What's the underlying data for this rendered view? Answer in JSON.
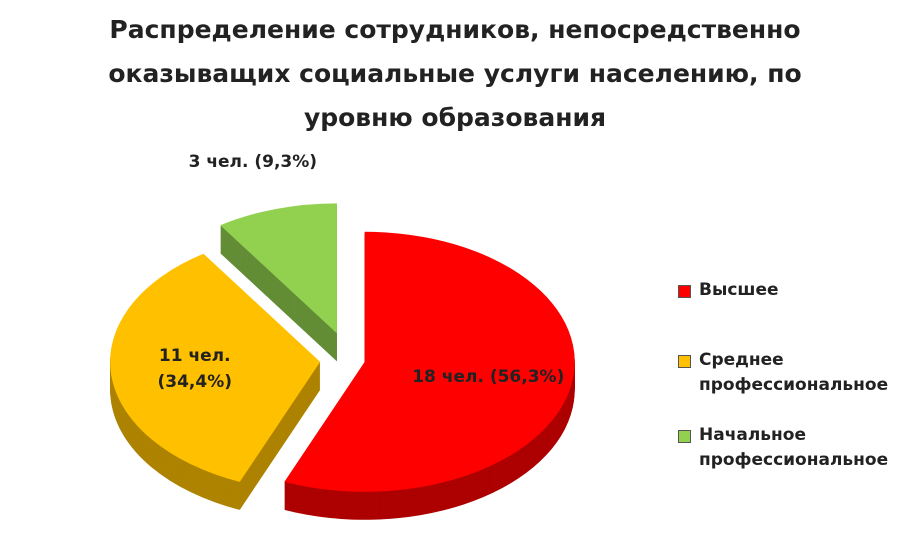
{
  "chart_data": {
    "type": "pie",
    "title": "Распределение сотрудников, непосредственно оказыващих социальные услуги населению, по уровню образования",
    "categories": [
      "Высшее",
      "Среднее профессиональное",
      "Начальное профессиональное"
    ],
    "values": [
      18,
      11,
      3
    ],
    "value_labels": [
      "18 чел. (56,3%)",
      "11 чел. (34,4%)",
      "3 чел. (9,3%)"
    ],
    "colors": [
      "#ff0000",
      "#ffc000",
      "#92d050"
    ],
    "legend": "right"
  }
}
